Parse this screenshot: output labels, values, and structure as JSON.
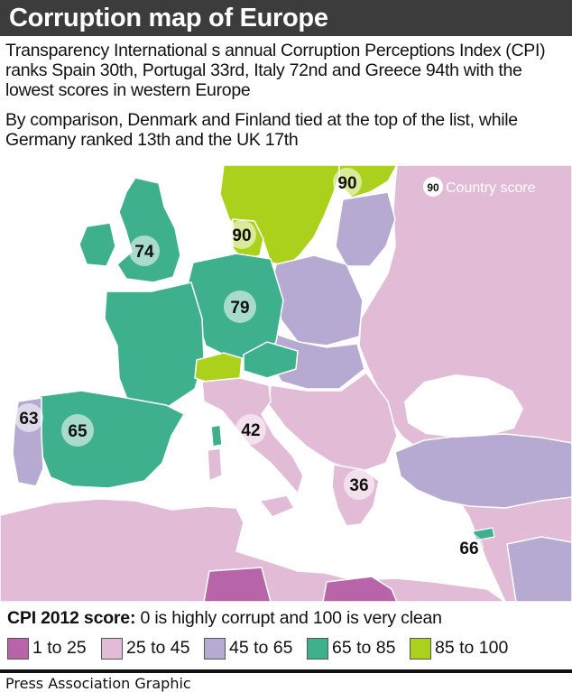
{
  "header": {
    "title": "Corruption map of Europe"
  },
  "intro": {
    "p1": "Transparency International s annual Corruption Perceptions Index (CPI) ranks Spain 30th, Portugal 33rd, Italy 72nd and Greece 94th with the lowest scores in western Europe",
    "p2": "By comparison, Denmark and Finland tied at the top of the list, while Germany ranked 13th and the UK 17th"
  },
  "colors": {
    "band_1_25": "#b864a8",
    "band_25_45": "#e2bcd6",
    "band_45_65": "#b6a9d2",
    "band_65_85": "#3eb08e",
    "band_85_100": "#acd11c",
    "sea": "#ffffff",
    "border": "#ffffff"
  },
  "map": {
    "key": {
      "sample": "90",
      "label": "Country score"
    },
    "scores": [
      {
        "country": "United Kingdom",
        "score": "74"
      },
      {
        "country": "Denmark",
        "score": "90"
      },
      {
        "country": "Finland",
        "score": "90"
      },
      {
        "country": "Germany",
        "score": "79"
      },
      {
        "country": "Portugal",
        "score": "63"
      },
      {
        "country": "Spain",
        "score": "65"
      },
      {
        "country": "Italy",
        "score": "42"
      },
      {
        "country": "Greece",
        "score": "36"
      },
      {
        "country": "Cyprus",
        "score": "66"
      }
    ]
  },
  "scale": {
    "lead": "CPI 2012 score:",
    "text": " 0 is  highly corrupt  and 100 is  very clean"
  },
  "legend": [
    {
      "label": "1 to 25",
      "color": "#b864a8"
    },
    {
      "label": "25 to 45",
      "color": "#e2bcd6"
    },
    {
      "label": "45 to 65",
      "color": "#b6a9d2"
    },
    {
      "label": "65 to 85",
      "color": "#3eb08e"
    },
    {
      "label": "85 to 100",
      "color": "#acd11c"
    }
  ],
  "footer": {
    "credit": "Press Association Graphic"
  }
}
